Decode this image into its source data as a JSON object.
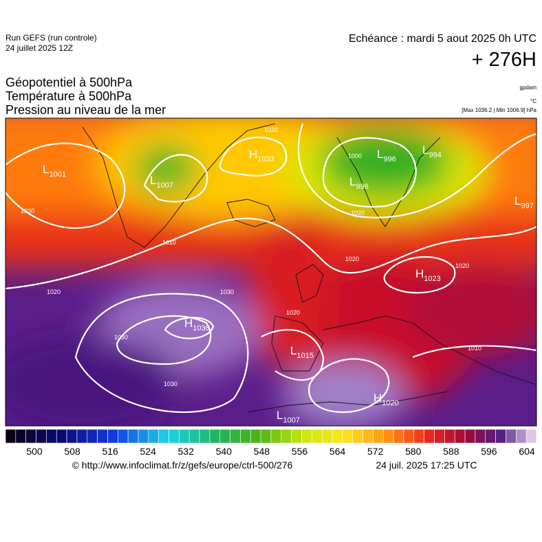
{
  "header": {
    "run": "Run GEFS (run controle)",
    "run_date": "24 juillet 2025 12Z",
    "valid": "Echéance : mardi 5 aout 2025 0h UTC",
    "lead": "+ 276H",
    "titles": [
      "Géopotentiel à 500hPa",
      "Température à 500hPa",
      "Pression au niveau de la mer"
    ],
    "units": [
      "gpdam",
      "°C",
      "[Max 1036.2 | Min 1006.9] hPa"
    ]
  },
  "centers": [
    {
      "type": "L",
      "value": "1001"
    },
    {
      "type": "L",
      "value": "1007"
    },
    {
      "type": "H",
      "value": "1033"
    },
    {
      "type": "L",
      "value": "996"
    },
    {
      "type": "L",
      "value": "996"
    },
    {
      "type": "L",
      "value": "994"
    },
    {
      "type": "L",
      "value": "997"
    },
    {
      "type": "H",
      "value": "1023"
    },
    {
      "type": "H",
      "value": "1036"
    },
    {
      "type": "L",
      "value": "1015"
    },
    {
      "type": "H",
      "value": "1020"
    },
    {
      "type": "L",
      "value": "1007"
    }
  ],
  "isobar_labels": [
    "1020",
    "1010",
    "1020",
    "1020",
    "1030",
    "1030",
    "1030",
    "1020",
    "1020",
    "1000",
    "1020",
    "1010",
    "1020"
  ],
  "scale": {
    "labels": [
      500,
      508,
      516,
      524,
      532,
      540,
      548,
      556,
      564,
      572,
      580,
      588,
      596,
      604
    ]
  },
  "footer": {
    "source": "© http://www.infoclimat.fr/z/gefs/europe/ctrl-500/276",
    "generated": "24 juil. 2025 17:25 UTC"
  }
}
